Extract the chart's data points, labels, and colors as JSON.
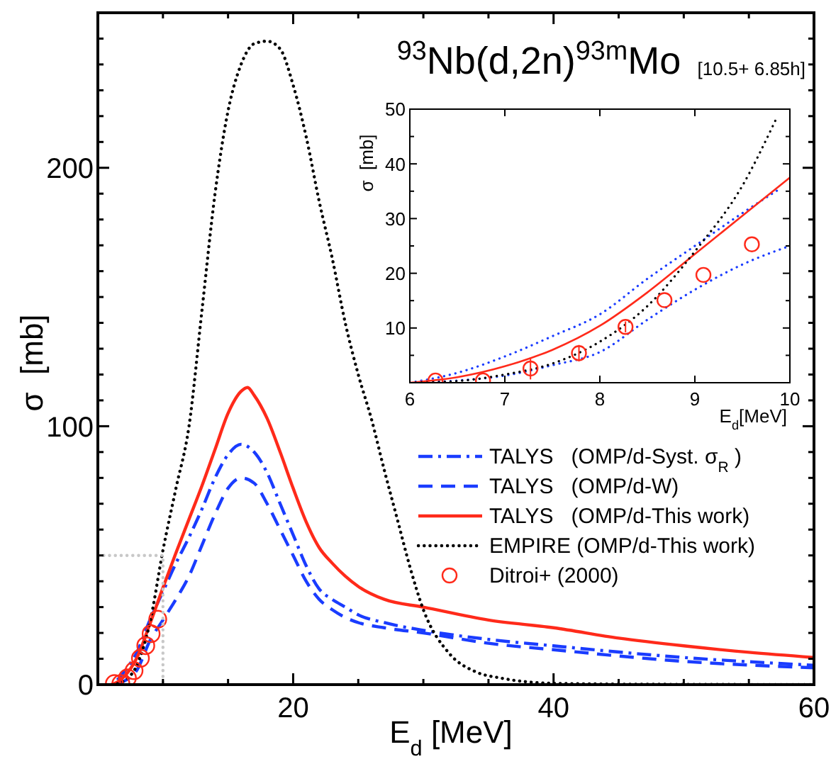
{
  "chart_data": [
    {
      "type": "line",
      "title": "$^{93}$Nb(d,2n)$^{93m}$Mo",
      "annotations": [
        "[10.5+ 6.85h]"
      ],
      "xlabel": "E$_{d}$ [MeV]",
      "ylabel": "σ  [mb]",
      "xlim": [
        5,
        60
      ],
      "xticks": [
        {
          "value": 10,
          "label": null
        },
        {
          "value": 15,
          "label": null
        },
        20,
        {
          "value": 25,
          "label": null
        },
        {
          "value": 30,
          "label": null
        },
        {
          "value": 35,
          "label": null
        },
        40,
        {
          "value": 45,
          "label": null
        },
        {
          "value": 50,
          "label": null
        },
        {
          "value": 55,
          "label": null
        },
        60
      ],
      "ylim": [
        0,
        260
      ],
      "yticks": [
        0,
        {
          "value": 10,
          "label": null
        },
        {
          "value": 20,
          "label": null
        },
        {
          "value": 30,
          "label": null
        },
        {
          "value": 40,
          "label": null
        },
        {
          "value": 50,
          "label": null
        },
        {
          "value": 60,
          "label": null
        },
        {
          "value": 70,
          "label": null
        },
        {
          "value": 80,
          "label": null
        },
        {
          "value": 90,
          "label": null
        },
        100,
        {
          "value": 110,
          "label": null
        },
        {
          "value": 120,
          "label": null
        },
        {
          "value": 130,
          "label": null
        },
        {
          "value": 140,
          "label": null
        },
        {
          "value": 150,
          "label": null
        },
        {
          "value": 160,
          "label": null
        },
        {
          "value": 170,
          "label": null
        },
        {
          "value": 180,
          "label": null
        },
        {
          "value": 190,
          "label": null
        },
        200,
        {
          "value": 210,
          "label": null
        },
        {
          "value": 220,
          "label": null
        },
        {
          "value": 230,
          "label": null
        },
        {
          "value": 240,
          "label": null
        },
        {
          "value": 250,
          "label": null
        }
      ],
      "legend": "bottom right",
      "series": [
        {
          "name": "TALYS   (OMP/d-Syst. σ$_{R}$ )",
          "color": "#1a3cff",
          "line_style": "dashdot",
          "x": [
            6.5,
            7,
            8,
            9,
            10,
            11,
            12,
            13,
            14,
            15,
            16,
            17,
            18,
            19,
            20,
            21,
            22,
            23,
            24,
            25,
            27,
            30,
            35,
            40,
            50,
            60
          ],
          "values": [
            1.8,
            4.8,
            12.5,
            25,
            36,
            47,
            57,
            68,
            80,
            89,
            93,
            90,
            82,
            70,
            58,
            46,
            37,
            33,
            30,
            27,
            24,
            21,
            17.5,
            15,
            10.5,
            7.5
          ]
        },
        {
          "name": "TALYS   (OMP/d-W)",
          "color": "#1a3cff",
          "line_style": "dashed",
          "x": [
            6.5,
            7,
            8,
            9,
            10,
            11,
            12,
            13,
            14,
            15,
            16,
            17,
            18,
            19,
            20,
            21,
            22,
            23,
            24,
            25,
            27,
            30,
            35,
            40,
            50,
            60
          ],
          "values": [
            0,
            1.3,
            5.6,
            17,
            25,
            33,
            42,
            54,
            66,
            76,
            80,
            78,
            70,
            60,
            50,
            40,
            33,
            29,
            26,
            24,
            22,
            20,
            16,
            13.5,
            9,
            6.5
          ]
        },
        {
          "name": "TALYS   (OMP/d-This work)",
          "color": "#ff2a1a",
          "line_style": "solid",
          "x": [
            6,
            6.5,
            7,
            8,
            9,
            10,
            11,
            12,
            13,
            14,
            15,
            16,
            16.5,
            17,
            18,
            19,
            20,
            21,
            22,
            23,
            24,
            25,
            27,
            30,
            35,
            40,
            45,
            50,
            55,
            60
          ],
          "values": [
            0,
            1,
            3,
            10.4,
            23.5,
            37.5,
            51,
            64,
            77,
            91,
            105,
            113.5,
            115,
            112,
            103,
            90,
            76,
            63,
            53,
            47,
            42,
            38,
            33,
            30,
            25,
            22,
            18,
            15,
            12.5,
            10.5
          ]
        },
        {
          "name": "EMPIRE (OMP/d-This work)",
          "color": "#000000",
          "line_style": "dotted",
          "x": [
            6.5,
            7,
            8,
            9,
            10,
            11,
            12,
            13,
            14,
            15,
            16,
            17,
            18,
            19,
            20,
            21,
            22,
            23,
            24,
            25,
            26,
            27,
            28,
            29,
            30,
            32,
            34,
            36,
            40,
            45,
            50,
            60
          ],
          "values": [
            0.3,
            1.5,
            7.5,
            24,
            52,
            76,
            100,
            145,
            190,
            222,
            240,
            248,
            249,
            246,
            232,
            212,
            187,
            165,
            140,
            120,
            103,
            83,
            64,
            45,
            29,
            12,
            5,
            2.5,
            0.5,
            0.2,
            0.1,
            0
          ]
        },
        {
          "name": "Ditroi+ (2000)",
          "type": "scatter",
          "marker": "circle",
          "color": "#ff2a1a",
          "x": [
            6.27,
            6.77,
            7.27,
            7.78,
            8.27,
            8.68,
            9.09,
            9.6
          ],
          "values": [
            0.4,
            0.4,
            2.6,
            5.4,
            10.2,
            15.1,
            19.7,
            25.3
          ]
        },
        {
          "color": "#c8c8c8",
          "line_style": "dotted",
          "x": [
            5,
            10,
            10
          ],
          "values": [
            50,
            50,
            0
          ]
        }
      ]
    },
    {
      "type": "line",
      "xlabel": "E$_{d}$[MeV]",
      "ylabel": "σ  [mb]",
      "xlim": [
        6,
        10
      ],
      "xticks": [
        6,
        7,
        8,
        9,
        10
      ],
      "ylim": [
        0,
        50
      ],
      "yticks": [
        {
          "value": 0,
          "label": null
        },
        {
          "value": 5,
          "label": null
        },
        10,
        {
          "value": 15,
          "label": null
        },
        20,
        {
          "value": 25,
          "label": null
        },
        30,
        {
          "value": 35,
          "label": null
        },
        40,
        {
          "value": 45,
          "label": null
        },
        50
      ],
      "series": [
        {
          "color": "#1a3cff",
          "line_style": "dotted",
          "x": [
            6,
            6.5,
            7,
            7.5,
            8,
            8.5,
            9,
            9.5,
            9.9
          ],
          "values": [
            0,
            1.8,
            4.8,
            8.5,
            12.5,
            19,
            25,
            31,
            35.5
          ]
        },
        {
          "color": "#1a3cff",
          "line_style": "dotted",
          "x": [
            6,
            6.5,
            7,
            7.5,
            8,
            8.5,
            9,
            9.5,
            10
          ],
          "values": [
            0,
            0.4,
            1.3,
            3.2,
            5.6,
            11.5,
            17,
            21.6,
            25
          ]
        },
        {
          "color": "#ff2a1a",
          "line_style": "solid",
          "x": [
            6,
            6.5,
            7,
            7.5,
            8,
            8.5,
            9,
            9.5,
            10
          ],
          "values": [
            0,
            1,
            3,
            6,
            10.4,
            16.5,
            23.5,
            30.5,
            37.5
          ]
        },
        {
          "color": "#000000",
          "line_style": "dotted",
          "x": [
            6,
            6.5,
            7,
            7.5,
            8,
            8.5,
            9,
            9.5,
            9.85
          ],
          "values": [
            0,
            0.3,
            1.5,
            3.5,
            7.5,
            14,
            24,
            36,
            48
          ]
        },
        {
          "type": "scatter",
          "marker": "circle",
          "color": "#ff2a1a",
          "x": [
            6.27,
            6.77,
            7.27,
            7.78,
            8.27,
            8.68,
            9.09,
            9.6
          ],
          "values": [
            0.4,
            0.4,
            2.6,
            5.4,
            10.2,
            15.1,
            19.7,
            25.3
          ],
          "errors": [
            null,
            null,
            2,
            1.5,
            1,
            null,
            null,
            null
          ]
        }
      ]
    }
  ]
}
